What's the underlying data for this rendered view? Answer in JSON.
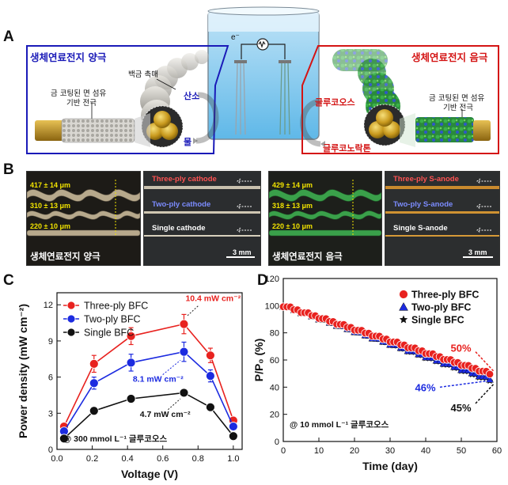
{
  "panels": {
    "a": "A",
    "b": "B",
    "c": "C",
    "d": "D"
  },
  "panelA": {
    "cathode_title": "생체연료전지 양극",
    "anode_title": "생체연료전지 음극",
    "platinum_label": "백금 촉매",
    "cathode_electrode_label_1": "금 코팅된 면 섬유",
    "cathode_electrode_label_2": "기반 전극",
    "anode_electrode_label_1": "금 코팅된 면 섬유",
    "anode_electrode_label_2": "기반 전극",
    "oxygen": "산소",
    "water": "물",
    "glucose": "글루코오스",
    "gluconolactone": "글루코노락톤",
    "electron": "e⁻",
    "colors": {
      "cathode": "#1a1ab8",
      "anode": "#d41414"
    }
  },
  "panelB": {
    "cathode_caption": "생체연료전지 양극",
    "anode_caption": "생체연료전지 음극",
    "cathode_measures": [
      "417 ± 14 μm",
      "310 ± 13 μm",
      "220 ± 10 μm"
    ],
    "anode_measures": [
      "429 ± 14 μm",
      "318 ± 13 μm",
      "220 ± 10 μm"
    ],
    "cathode_labels": [
      "Three-ply cathode",
      "Two-ply cathode",
      "Single cathode"
    ],
    "anode_labels": [
      "Three-ply S-anode",
      "Two-ply S-anode",
      "Single S-anode"
    ],
    "scale_bar": "3 mm"
  },
  "chart_data": [
    {
      "type": "line",
      "xlabel": "Voltage (V)",
      "ylabel": "Power density (mW cm⁻²)",
      "xlim": [
        0,
        1.05
      ],
      "ylim": [
        0,
        13
      ],
      "xticks": [
        "0.0",
        "0.2",
        "0.4",
        "0.6",
        "0.8",
        "1.0"
      ],
      "yticks": [
        "0",
        "3",
        "6",
        "9",
        "12"
      ],
      "legend": "top-left",
      "annotation_condition": "@ 300 mmol L⁻¹ 글루코오스",
      "series": [
        {
          "name": "Three-ply BFC",
          "color": "#e8221f",
          "marker": "circle",
          "x": [
            0.04,
            0.21,
            0.42,
            0.72,
            0.87,
            1.0
          ],
          "y": [
            1.9,
            7.1,
            9.4,
            10.4,
            7.8,
            2.4
          ],
          "err": [
            0.2,
            0.7,
            0.7,
            0.8,
            0.6,
            0.3
          ],
          "peak_label": "10.4 mW cm⁻²"
        },
        {
          "name": "Two-ply BFC",
          "color": "#1c2be0",
          "marker": "circle",
          "x": [
            0.04,
            0.21,
            0.42,
            0.72,
            0.87,
            1.0
          ],
          "y": [
            1.5,
            5.5,
            7.2,
            8.1,
            6.1,
            1.9
          ],
          "err": [
            0.2,
            0.5,
            0.7,
            0.8,
            0.5,
            0.2
          ],
          "peak_label": "8.1 mW cm⁻²"
        },
        {
          "name": "Single BFC",
          "color": "#111111",
          "marker": "circle",
          "x": [
            0.04,
            0.21,
            0.42,
            0.72,
            0.87,
            1.0
          ],
          "y": [
            0.9,
            3.2,
            4.2,
            4.7,
            3.5,
            1.1
          ],
          "err": [
            0.1,
            0.3,
            0.3,
            0.3,
            0.3,
            0.1
          ],
          "peak_label": "4.7 mW cm⁻²"
        }
      ]
    },
    {
      "type": "scatter",
      "xlabel": "Time (day)",
      "ylabel": "P/P₀ (%)",
      "xlim": [
        0,
        60
      ],
      "ylim": [
        0,
        120
      ],
      "xticks": [
        "0",
        "10",
        "20",
        "30",
        "40",
        "50",
        "60"
      ],
      "yticks": [
        "0",
        "20",
        "40",
        "60",
        "80",
        "100",
        "120"
      ],
      "legend": "top-right",
      "annotation_condition": "@ 10 mmol L⁻¹ 글루코오스",
      "series": [
        {
          "name": "Three-ply BFC",
          "color": "#e8221f",
          "marker": "circle",
          "start": 100,
          "end": 50,
          "end_label": "50%"
        },
        {
          "name": "Two-ply BFC",
          "color": "#1c2be0",
          "marker": "triangle",
          "start": 100,
          "end": 46,
          "end_label": "46%"
        },
        {
          "name": "Single BFC",
          "color": "#111111",
          "marker": "star",
          "start": 100,
          "end": 45,
          "end_label": "45%"
        }
      ]
    }
  ]
}
